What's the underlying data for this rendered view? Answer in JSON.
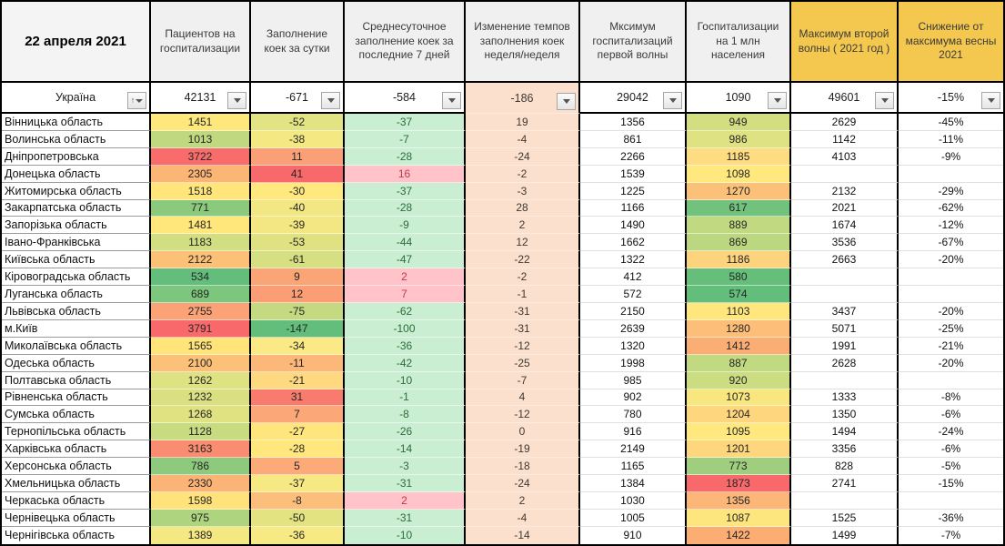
{
  "ui": {
    "icons": {
      "dropdown": "filter-dropdown-triangle",
      "sort": "sort-filter-arrow"
    }
  },
  "table": {
    "date_label": "22 апреля 2021",
    "columns": [
      {
        "label": "Пациентов на госпитализации",
        "highlight": false
      },
      {
        "label": "Заполнение коек за сутки",
        "highlight": false
      },
      {
        "label": "Среднесуточное заполнение коек за последние 7 дней",
        "highlight": false
      },
      {
        "label": "Изменение темпов заполнения коек неделя/неделя",
        "highlight": false
      },
      {
        "label": "Мксимум госпитализаций первой волны",
        "highlight": false
      },
      {
        "label": "Госпитализации на 1 млн населения",
        "highlight": false
      },
      {
        "label": "Максимум второй волны ( 2021 год )",
        "highlight": true
      },
      {
        "label": "Снижение от максимума весны 2021",
        "highlight": true
      }
    ],
    "header_colors": {
      "normal_bg": "#f0f0f0",
      "highlight_bg": "#F4C84E"
    },
    "summary": {
      "name": "Україна",
      "cells": [
        {
          "v": "42131"
        },
        {
          "v": "-671"
        },
        {
          "v": "-584"
        },
        {
          "v": "-186",
          "peach": true
        },
        {
          "v": "29042"
        },
        {
          "v": "1090"
        },
        {
          "v": "49601"
        },
        {
          "v": "-15%"
        }
      ]
    },
    "rows": [
      {
        "name": "Вінницька область",
        "c2": {
          "v": "1451",
          "bg": "#FFE87B"
        },
        "c3": {
          "v": "-52",
          "bg": "#E2E382"
        },
        "c4": {
          "v": "-37",
          "cls": "good"
        },
        "c5": "19",
        "c6": "1356",
        "c7": {
          "v": "949",
          "bg": "#D3DE81"
        },
        "c8": "2629",
        "c9": "-45%"
      },
      {
        "name": "Волинська область",
        "c2": {
          "v": "1013",
          "bg": "#C0D87F"
        },
        "c3": {
          "v": "-38",
          "bg": "#F4E883"
        },
        "c4": {
          "v": "-7",
          "cls": "good"
        },
        "c5": "-4",
        "c6": "861",
        "c7": {
          "v": "986",
          "bg": "#DEE282"
        },
        "c8": "1142",
        "c9": "-11%"
      },
      {
        "name": "Дніпропетровська",
        "c2": {
          "v": "3722",
          "bg": "#F86D6C"
        },
        "c3": {
          "v": "11",
          "bg": "#FBA076"
        },
        "c4": {
          "v": "-28",
          "cls": "good"
        },
        "c5": "-24",
        "c6": "2266",
        "c7": {
          "v": "1185",
          "bg": "#FEDC81"
        },
        "c8": "4103",
        "c9": "-9%"
      },
      {
        "name": "Донецька область",
        "c2": {
          "v": "2305",
          "bg": "#FBB575"
        },
        "c3": {
          "v": "41",
          "bg": "#F8696B"
        },
        "c4": {
          "v": "16",
          "cls": "bad"
        },
        "c5": "-2",
        "c6": "1539",
        "c7": {
          "v": "1098",
          "bg": "#FFE87E"
        },
        "c8": "",
        "c9": ""
      },
      {
        "name": "Житомирська область",
        "c2": {
          "v": "1518",
          "bg": "#FFE57A"
        },
        "c3": {
          "v": "-30",
          "bg": "#FFE87E"
        },
        "c4": {
          "v": "-37",
          "cls": "good"
        },
        "c5": "-3",
        "c6": "1225",
        "c7": {
          "v": "1270",
          "bg": "#FCC178"
        },
        "c8": "2132",
        "c9": "-29%"
      },
      {
        "name": "Закарпатська область",
        "c2": {
          "v": "771",
          "bg": "#8BCA7D"
        },
        "c3": {
          "v": "-40",
          "bg": "#F2E783"
        },
        "c4": {
          "v": "-28",
          "cls": "good"
        },
        "c5": "28",
        "c6": "1166",
        "c7": {
          "v": "617",
          "bg": "#70C27C"
        },
        "c8": "2021",
        "c9": "-62%"
      },
      {
        "name": "Запорізька область",
        "c2": {
          "v": "1481",
          "bg": "#FFE77B"
        },
        "c3": {
          "v": "-39",
          "bg": "#F3E783"
        },
        "c4": {
          "v": "-9",
          "cls": "good"
        },
        "c5": "2",
        "c6": "1490",
        "c7": {
          "v": "889",
          "bg": "#C1D980"
        },
        "c8": "1674",
        "c9": "-12%"
      },
      {
        "name": "Івано-Франківська",
        "c2": {
          "v": "1183",
          "bg": "#D1DE81"
        },
        "c3": {
          "v": "-53",
          "bg": "#E0E282"
        },
        "c4": {
          "v": "-44",
          "cls": "good"
        },
        "c5": "12",
        "c6": "1662",
        "c7": {
          "v": "869",
          "bg": "#BBD780"
        },
        "c8": "3536",
        "c9": "-67%"
      },
      {
        "name": "Київська область",
        "c2": {
          "v": "2122",
          "bg": "#FCC077"
        },
        "c3": {
          "v": "-61",
          "bg": "#D6DF82"
        },
        "c4": {
          "v": "-47",
          "cls": "good"
        },
        "c5": "-22",
        "c6": "1322",
        "c7": {
          "v": "1186",
          "bg": "#FDD37E"
        },
        "c8": "2663",
        "c9": "-20%"
      },
      {
        "name": "Кіровоградська область",
        "c2": {
          "v": "534",
          "bg": "#63BE7B"
        },
        "c3": {
          "v": "9",
          "bg": "#FBA476"
        },
        "c4": {
          "v": "2",
          "cls": "bad"
        },
        "c5": "-2",
        "c6": "412",
        "c7": {
          "v": "580",
          "bg": "#65BF7B"
        },
        "c8": "",
        "c9": ""
      },
      {
        "name": "Луганська область",
        "c2": {
          "v": "689",
          "bg": "#7DC67D"
        },
        "c3": {
          "v": "12",
          "bg": "#FB9E75"
        },
        "c4": {
          "v": "7",
          "cls": "bad"
        },
        "c5": "-1",
        "c6": "572",
        "c7": {
          "v": "574",
          "bg": "#63BE7B"
        },
        "c8": "",
        "c9": ""
      },
      {
        "name": "Львівська область",
        "c2": {
          "v": "2755",
          "bg": "#FBA376"
        },
        "c3": {
          "v": "-75",
          "bg": "#C3DA81"
        },
        "c4": {
          "v": "-62",
          "cls": "good"
        },
        "c5": "-31",
        "c6": "2150",
        "c7": {
          "v": "1103",
          "bg": "#FFE77D"
        },
        "c8": "3437",
        "c9": "-20%"
      },
      {
        "name": "м.Київ",
        "c2": {
          "v": "3791",
          "bg": "#F8696B"
        },
        "c3": {
          "v": "-147",
          "bg": "#63BE7B"
        },
        "c4": {
          "v": "-100",
          "cls": "good"
        },
        "c5": "-31",
        "c6": "2639",
        "c7": {
          "v": "1280",
          "bg": "#FCBE78"
        },
        "c8": "5071",
        "c9": "-25%"
      },
      {
        "name": "Миколаївська область",
        "c2": {
          "v": "1565",
          "bg": "#FFE47A"
        },
        "c3": {
          "v": "-34",
          "bg": "#FAE984"
        },
        "c4": {
          "v": "-36",
          "cls": "good"
        },
        "c5": "-12",
        "c6": "1320",
        "c7": {
          "v": "1412",
          "bg": "#FBAE74"
        },
        "c8": "1991",
        "c9": "-21%"
      },
      {
        "name": "Одеська область",
        "c2": {
          "v": "2100",
          "bg": "#FCC178"
        },
        "c3": {
          "v": "-11",
          "bg": "#FCB878"
        },
        "c4": {
          "v": "-42",
          "cls": "good"
        },
        "c5": "-25",
        "c6": "1998",
        "c7": {
          "v": "887",
          "bg": "#C1D980"
        },
        "c8": "2628",
        "c9": "-20%"
      },
      {
        "name": "Полтавська область",
        "c2": {
          "v": "1262",
          "bg": "#DFE282"
        },
        "c3": {
          "v": "-21",
          "bg": "#FED97F"
        },
        "c4": {
          "v": "-10",
          "cls": "good"
        },
        "c5": "-7",
        "c6": "985",
        "c7": {
          "v": "920",
          "bg": "#CBDC81"
        },
        "c8": "",
        "c9": ""
      },
      {
        "name": "Рівненська область",
        "c2": {
          "v": "1232",
          "bg": "#DAE082"
        },
        "c3": {
          "v": "31",
          "bg": "#F97B6E"
        },
        "c4": {
          "v": "-1",
          "cls": "good"
        },
        "c5": "4",
        "c6": "902",
        "c7": {
          "v": "1073",
          "bg": "#F8E67F"
        },
        "c8": "1333",
        "c9": "-8%"
      },
      {
        "name": "Сумська область",
        "c2": {
          "v": "1268",
          "bg": "#E0E282"
        },
        "c3": {
          "v": "7",
          "bg": "#FBA777"
        },
        "c4": {
          "v": "-8",
          "cls": "good"
        },
        "c5": "-12",
        "c6": "780",
        "c7": {
          "v": "1204",
          "bg": "#FDD67E"
        },
        "c8": "1350",
        "c9": "-6%"
      },
      {
        "name": "Тернопільська область",
        "c2": {
          "v": "1128",
          "bg": "#C8DB81"
        },
        "c3": {
          "v": "-27",
          "bg": "#FFE67C"
        },
        "c4": {
          "v": "-26",
          "cls": "good"
        },
        "c5": "0",
        "c6": "916",
        "c7": {
          "v": "1095",
          "bg": "#FFE87E"
        },
        "c8": "1494",
        "c9": "-24%"
      },
      {
        "name": "Харківська область",
        "c2": {
          "v": "3163",
          "bg": "#FA8C72"
        },
        "c3": {
          "v": "-28",
          "bg": "#FFE77D"
        },
        "c4": {
          "v": "-14",
          "cls": "good"
        },
        "c5": "-19",
        "c6": "2149",
        "c7": {
          "v": "1201",
          "bg": "#FDD67E"
        },
        "c8": "3356",
        "c9": "-6%"
      },
      {
        "name": "Херсонська область",
        "c2": {
          "v": "786",
          "bg": "#8ECA7D"
        },
        "c3": {
          "v": "5",
          "bg": "#FCAB78"
        },
        "c4": {
          "v": "-3",
          "cls": "good"
        },
        "c5": "-18",
        "c6": "1165",
        "c7": {
          "v": "773",
          "bg": "#9FCF7E"
        },
        "c8": "828",
        "c9": "-5%"
      },
      {
        "name": "Хмельницька область",
        "c2": {
          "v": "2330",
          "bg": "#FBB475"
        },
        "c3": {
          "v": "-37",
          "bg": "#F6E883"
        },
        "c4": {
          "v": "-31",
          "cls": "good"
        },
        "c5": "-24",
        "c6": "1384",
        "c7": {
          "v": "1873",
          "bg": "#F8696B"
        },
        "c8": "2741",
        "c9": "-15%"
      },
      {
        "name": "Черкаська область",
        "c2": {
          "v": "1598",
          "bg": "#FFE279"
        },
        "c3": {
          "v": "-8",
          "bg": "#FCBF7B"
        },
        "c4": {
          "v": "2",
          "cls": "bad"
        },
        "c5": "2",
        "c6": "1030",
        "c7": {
          "v": "1356",
          "bg": "#FCB677"
        },
        "c8": "",
        "c9": ""
      },
      {
        "name": "Чернівецька область",
        "c2": {
          "v": "975",
          "bg": "#AED47F"
        },
        "c3": {
          "v": "-50",
          "bg": "#E4E382"
        },
        "c4": {
          "v": "-31",
          "cls": "good"
        },
        "c5": "-4",
        "c6": "1005",
        "c7": {
          "v": "1087",
          "bg": "#FDE67E"
        },
        "c8": "1525",
        "c9": "-36%"
      },
      {
        "name": "Чернігівська область",
        "c2": {
          "v": "1389",
          "bg": "#F4E883"
        },
        "c3": {
          "v": "-36",
          "bg": "#F7E983"
        },
        "c4": {
          "v": "-10",
          "cls": "good"
        },
        "c5": "-14",
        "c6": "910",
        "c7": {
          "v": "1422",
          "bg": "#FBAD73"
        },
        "c8": "1499",
        "c9": "-7%"
      }
    ]
  }
}
